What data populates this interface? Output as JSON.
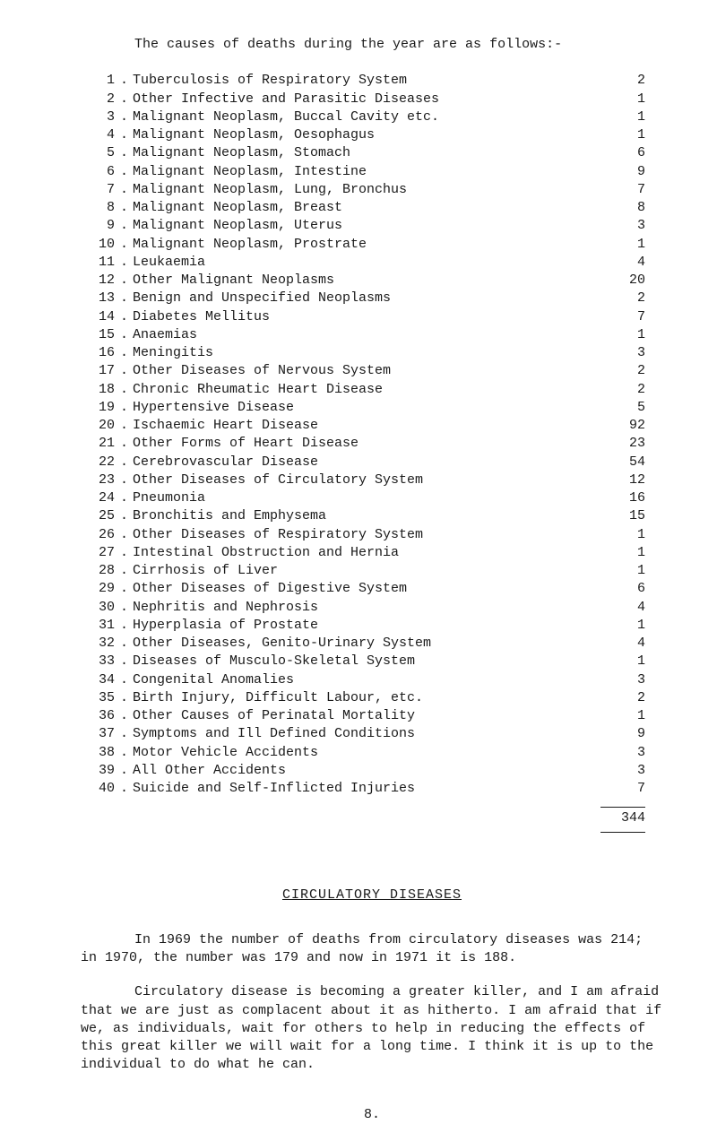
{
  "intro": "The causes of deaths during the year are as follows:-",
  "causes": [
    {
      "num": "1",
      "text": "Tuberculosis of Respiratory System",
      "value": "2"
    },
    {
      "num": "2",
      "text": "Other Infective and Parasitic Diseases",
      "value": "1"
    },
    {
      "num": "3",
      "text": "Malignant Neoplasm, Buccal Cavity etc.",
      "value": "1"
    },
    {
      "num": "4",
      "text": "Malignant Neoplasm, Oesophagus",
      "value": "1"
    },
    {
      "num": "5",
      "text": "Malignant Neoplasm, Stomach",
      "value": "6"
    },
    {
      "num": "6",
      "text": "Malignant Neoplasm, Intestine",
      "value": "9"
    },
    {
      "num": "7",
      "text": "Malignant Neoplasm, Lung, Bronchus",
      "value": "7"
    },
    {
      "num": "8",
      "text": "Malignant Neoplasm, Breast",
      "value": "8"
    },
    {
      "num": "9",
      "text": "Malignant Neoplasm, Uterus",
      "value": "3"
    },
    {
      "num": "10",
      "text": "Malignant Neoplasm, Prostrate",
      "value": "1"
    },
    {
      "num": "11",
      "text": "Leukaemia",
      "value": "4"
    },
    {
      "num": "12",
      "text": "Other Malignant Neoplasms",
      "value": "20"
    },
    {
      "num": "13",
      "text": "Benign and Unspecified Neoplasms",
      "value": "2"
    },
    {
      "num": "14",
      "text": "Diabetes Mellitus",
      "value": "7"
    },
    {
      "num": "15",
      "text": "Anaemias",
      "value": "1"
    },
    {
      "num": "16",
      "text": "Meningitis",
      "value": "3"
    },
    {
      "num": "17",
      "text": "Other Diseases of Nervous System",
      "value": "2"
    },
    {
      "num": "18",
      "text": "Chronic Rheumatic Heart Disease",
      "value": "2"
    },
    {
      "num": "19",
      "text": "Hypertensive Disease",
      "value": "5"
    },
    {
      "num": "20",
      "text": "Ischaemic Heart Disease",
      "value": "92"
    },
    {
      "num": "21",
      "text": "Other Forms of Heart Disease",
      "value": "23"
    },
    {
      "num": "22",
      "text": "Cerebrovascular Disease",
      "value": "54"
    },
    {
      "num": "23",
      "text": "Other Diseases of Circulatory System",
      "value": "12"
    },
    {
      "num": "24",
      "text": "Pneumonia",
      "value": "16"
    },
    {
      "num": "25",
      "text": "Bronchitis and Emphysema",
      "value": "15"
    },
    {
      "num": "26",
      "text": "Other Diseases of Respiratory System",
      "value": "1"
    },
    {
      "num": "27",
      "text": "Intestinal Obstruction and Hernia",
      "value": "1"
    },
    {
      "num": "28",
      "text": "Cirrhosis of Liver",
      "value": "1"
    },
    {
      "num": "29",
      "text": "Other Diseases of Digestive System",
      "value": "6"
    },
    {
      "num": "30",
      "text": "Nephritis and Nephrosis",
      "value": "4"
    },
    {
      "num": "31",
      "text": "Hyperplasia of Prostate",
      "value": "1"
    },
    {
      "num": "32",
      "text": "Other Diseases, Genito-Urinary System",
      "value": "4"
    },
    {
      "num": "33",
      "text": "Diseases of Musculo-Skeletal System",
      "value": "1"
    },
    {
      "num": "34",
      "text": "Congenital Anomalies",
      "value": "3"
    },
    {
      "num": "35",
      "text": "Birth Injury, Difficult Labour, etc.",
      "value": "2"
    },
    {
      "num": "36",
      "text": "Other Causes of Perinatal Mortality",
      "value": "1"
    },
    {
      "num": "37",
      "text": "Symptoms and Ill Defined Conditions",
      "value": "9"
    },
    {
      "num": "38",
      "text": "Motor Vehicle Accidents",
      "value": "3"
    },
    {
      "num": "39",
      "text": "All Other Accidents",
      "value": "3"
    },
    {
      "num": "40",
      "text": "Suicide and Self-Inflicted Injuries",
      "value": "7"
    }
  ],
  "total": "344",
  "section_heading": "CIRCULATORY DISEASES",
  "para1": "In 1969 the number of deaths from circulatory diseases was 214; in 1970, the number was 179 and now in 1971 it is 188.",
  "para2": "Circulatory disease is becoming a greater killer, and I am afraid that we are just as complacent about it as hitherto. I am afraid that if we, as individuals, wait for others to help in reducing the effects of this great killer we will wait for a long time.  I think it is up to the individual to do what he can.",
  "page_num": "8."
}
